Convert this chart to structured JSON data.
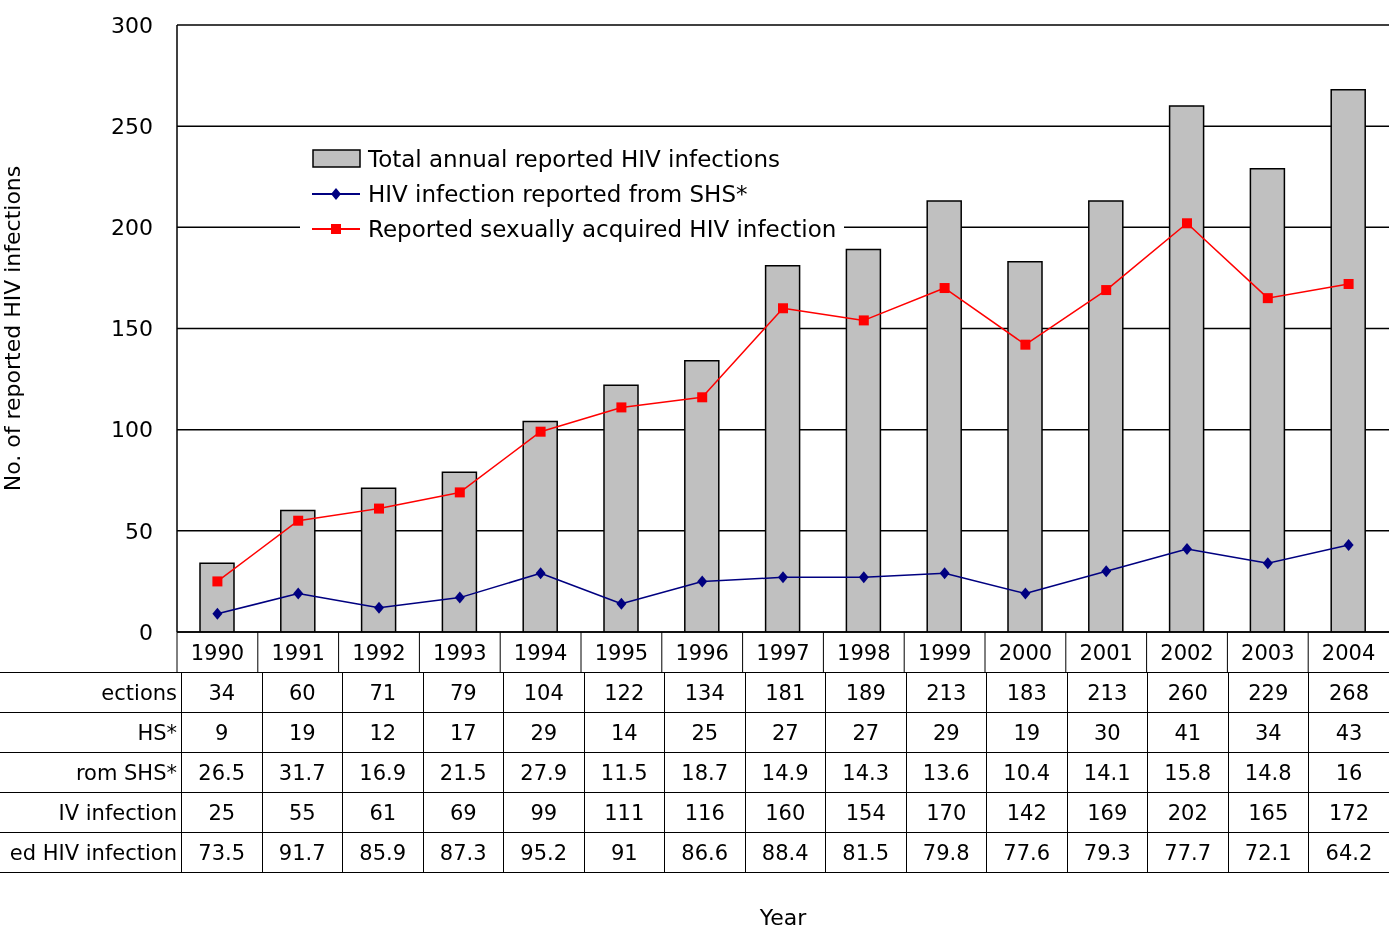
{
  "chart_data": {
    "type": "bar",
    "ylabel": "No. of reported HIV infections",
    "categories": [
      "1990",
      "1991",
      "1992",
      "1993",
      "1994",
      "1995",
      "1996",
      "1997",
      "1998",
      "1999",
      "2000",
      "2001",
      "2002",
      "2003",
      "2004"
    ],
    "series": [
      {
        "name": "Total annual reported HIV infections",
        "color": "#c0c0c0",
        "values": [
          34,
          60,
          71,
          79,
          104,
          122,
          134,
          181,
          189,
          213,
          183,
          213,
          260,
          229,
          268
        ]
      },
      {
        "name": "HIV infection reported from SHS*",
        "type": "line",
        "color": "#000080",
        "marker": "diamond",
        "values": [
          9,
          19,
          12,
          17,
          29,
          14,
          25,
          27,
          27,
          29,
          19,
          30,
          41,
          34,
          43
        ]
      },
      {
        "name": "Reported sexually acquired HIV infection",
        "type": "line",
        "color": "#ff0000",
        "marker": "square",
        "values": [
          25,
          55,
          61,
          69,
          99,
          111,
          116,
          160,
          154,
          170,
          142,
          169,
          202,
          165,
          172
        ]
      }
    ],
    "annotations": [
      "Year",
      "ections",
      "HS*",
      "rom SHS*",
      "IV infection",
      "ed HIV infection",
      "26.5",
      "31.7",
      "16.9",
      "21.5",
      "27.9",
      "11.5",
      "18.7",
      "14.9",
      "14.3",
      "13.6",
      "10.4",
      "14.1",
      "15.8",
      "14.8",
      "16",
      "73.5",
      "91.7",
      "85.9",
      "87.3",
      "95.2",
      "91",
      "86.6",
      "88.4",
      "81.5",
      "79.8",
      "77.6",
      "79.3",
      "77.7",
      "72.1",
      "64.2"
    ],
    "data_labels": true,
    "ylim": [
      0,
      300
    ],
    "yticks": [
      0,
      50,
      100,
      150,
      200,
      250,
      300
    ],
    "grid": "y",
    "legend": "top left"
  }
}
